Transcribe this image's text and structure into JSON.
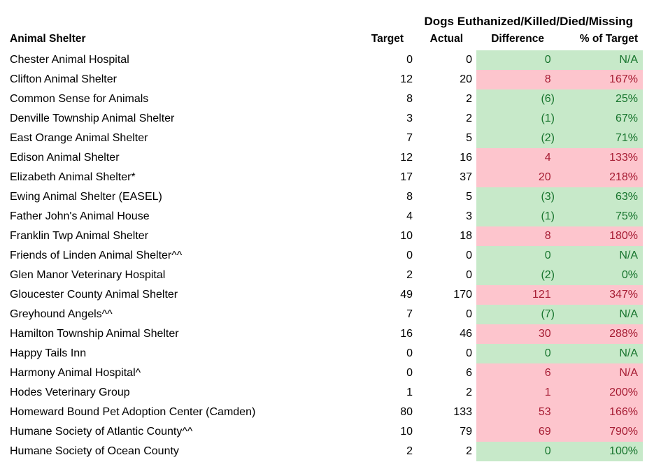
{
  "title": "Dogs Euthanized/Killed/Died/Missing",
  "columns": {
    "shelter": "Animal Shelter",
    "target": "Target",
    "actual": "Actual",
    "difference": "Difference",
    "pct": "% of Target"
  },
  "colors": {
    "good_bg": "#c7e9c9",
    "good_text": "#17742d",
    "bad_bg": "#fdc5cd",
    "bad_text": "#a61c33",
    "text": "#000000",
    "background": "#ffffff"
  },
  "rows": [
    {
      "shelter": "Chester Animal Hospital",
      "target": "0",
      "actual": "0",
      "difference": "0",
      "pct": "N/A",
      "status": "good"
    },
    {
      "shelter": "Clifton Animal Shelter",
      "target": "12",
      "actual": "20",
      "difference": "8",
      "pct": "167%",
      "status": "bad"
    },
    {
      "shelter": "Common Sense for Animals",
      "target": "8",
      "actual": "2",
      "difference": "(6)",
      "pct": "25%",
      "status": "good"
    },
    {
      "shelter": "Denville Township Animal Shelter",
      "target": "3",
      "actual": "2",
      "difference": "(1)",
      "pct": "67%",
      "status": "good"
    },
    {
      "shelter": "East Orange Animal Shelter",
      "target": "7",
      "actual": "5",
      "difference": "(2)",
      "pct": "71%",
      "status": "good"
    },
    {
      "shelter": "Edison Animal Shelter",
      "target": "12",
      "actual": "16",
      "difference": "4",
      "pct": "133%",
      "status": "bad"
    },
    {
      "shelter": "Elizabeth Animal Shelter*",
      "target": "17",
      "actual": "37",
      "difference": "20",
      "pct": "218%",
      "status": "bad"
    },
    {
      "shelter": "Ewing Animal Shelter (EASEL)",
      "target": "8",
      "actual": "5",
      "difference": "(3)",
      "pct": "63%",
      "status": "good"
    },
    {
      "shelter": "Father John's Animal House",
      "target": "4",
      "actual": "3",
      "difference": "(1)",
      "pct": "75%",
      "status": "good"
    },
    {
      "shelter": "Franklin Twp Animal Shelter",
      "target": "10",
      "actual": "18",
      "difference": "8",
      "pct": "180%",
      "status": "bad"
    },
    {
      "shelter": "Friends of Linden Animal Shelter^^",
      "target": "0",
      "actual": "0",
      "difference": "0",
      "pct": "N/A",
      "status": "good"
    },
    {
      "shelter": "Glen Manor Veterinary Hospital",
      "target": "2",
      "actual": "0",
      "difference": "(2)",
      "pct": "0%",
      "status": "good"
    },
    {
      "shelter": "Gloucester County Animal Shelter",
      "target": "49",
      "actual": "170",
      "difference": "121",
      "pct": "347%",
      "status": "bad"
    },
    {
      "shelter": "Greyhound Angels^^",
      "target": "7",
      "actual": "0",
      "difference": "(7)",
      "pct": "N/A",
      "status": "good"
    },
    {
      "shelter": "Hamilton Township Animal Shelter",
      "target": "16",
      "actual": "46",
      "difference": "30",
      "pct": "288%",
      "status": "bad"
    },
    {
      "shelter": "Happy Tails Inn",
      "target": "0",
      "actual": "0",
      "difference": "0",
      "pct": "N/A",
      "status": "good"
    },
    {
      "shelter": "Harmony Animal Hospital^",
      "target": "0",
      "actual": "6",
      "difference": "6",
      "pct": "N/A",
      "status": "bad"
    },
    {
      "shelter": "Hodes Veterinary Group",
      "target": "1",
      "actual": "2",
      "difference": "1",
      "pct": "200%",
      "status": "bad"
    },
    {
      "shelter": "Homeward Bound Pet Adoption Center (Camden)",
      "target": "80",
      "actual": "133",
      "difference": "53",
      "pct": "166%",
      "status": "bad"
    },
    {
      "shelter": "Humane Society of Atlantic County^^",
      "target": "10",
      "actual": "79",
      "difference": "69",
      "pct": "790%",
      "status": "bad"
    },
    {
      "shelter": "Humane Society of Ocean County",
      "target": "2",
      "actual": "2",
      "difference": "0",
      "pct": "100%",
      "status": "good"
    }
  ]
}
